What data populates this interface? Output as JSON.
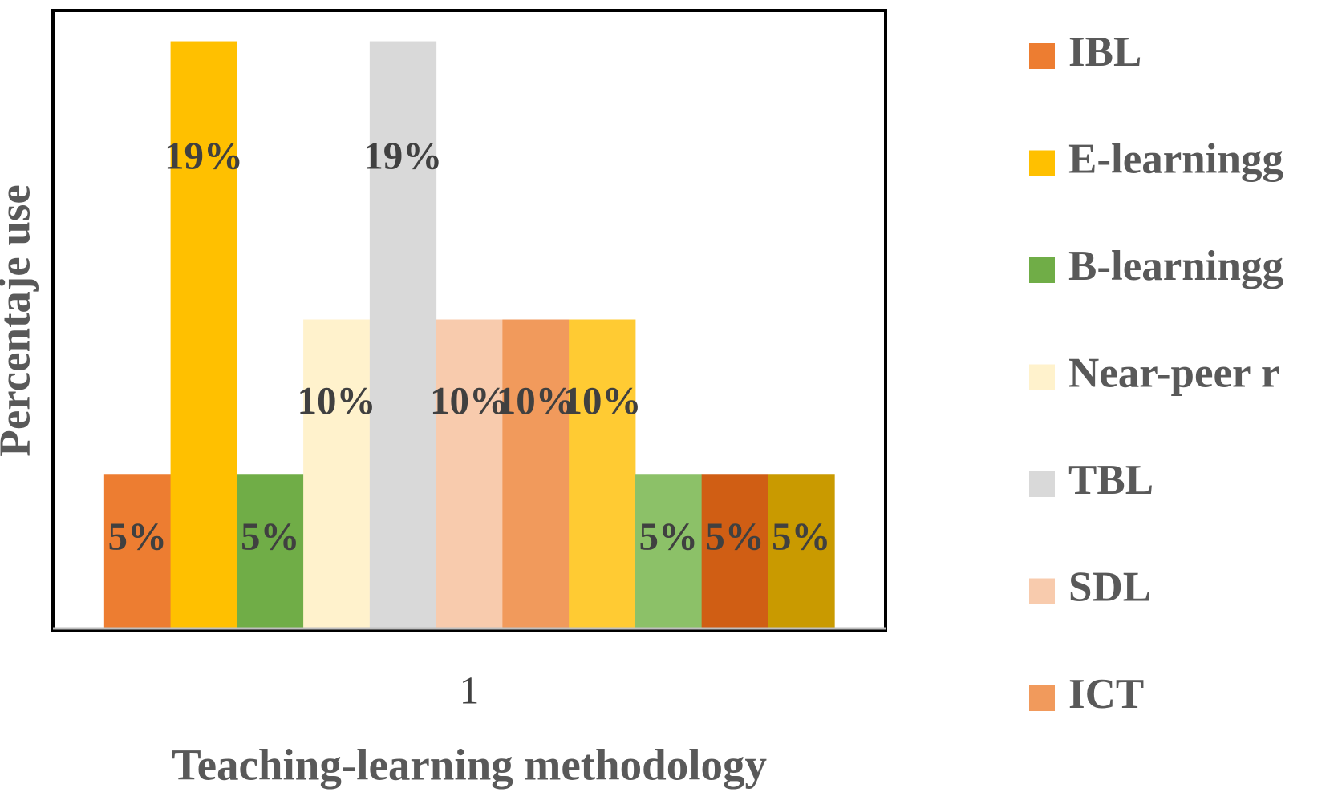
{
  "chart_data": {
    "type": "bar",
    "x_label": "Teaching-learning methodology",
    "y_label": "Percentaje use",
    "categories": [
      "1"
    ],
    "ylim": [
      0,
      20
    ],
    "series": [
      {
        "name": "IBL",
        "color": "#ED7D31",
        "values": [
          5
        ],
        "value_labels": [
          "5%"
        ]
      },
      {
        "name": "E-learningg",
        "color": "#FFC000",
        "values": [
          19
        ],
        "value_labels": [
          "19%"
        ]
      },
      {
        "name": "B-learningg",
        "color": "#70AD47",
        "values": [
          5
        ],
        "value_labels": [
          "5%"
        ]
      },
      {
        "name": "Near-peer r",
        "color": "#FFF2CC",
        "values": [
          10
        ],
        "value_labels": [
          "10%"
        ]
      },
      {
        "name": "TBL",
        "color": "#D9D9D9",
        "values": [
          19
        ],
        "value_labels": [
          "19%"
        ]
      },
      {
        "name": "SDL",
        "color": "#F8CBAD",
        "values": [
          10
        ],
        "value_labels": [
          "10%"
        ]
      },
      {
        "name": "ICT",
        "color": "#F19A5C",
        "values": [
          10
        ],
        "value_labels": [
          "10%"
        ]
      },
      {
        "name": null,
        "color": "#FFCB33",
        "values": [
          10
        ],
        "value_labels": [
          "10%"
        ]
      },
      {
        "name": null,
        "color": "#8CC168",
        "values": [
          5
        ],
        "value_labels": [
          "5%"
        ]
      },
      {
        "name": null,
        "color": "#D05E14",
        "values": [
          5
        ],
        "value_labels": [
          "5%"
        ]
      },
      {
        "name": null,
        "color": "#C99A00",
        "values": [
          5
        ],
        "value_labels": [
          "5%"
        ]
      }
    ]
  }
}
